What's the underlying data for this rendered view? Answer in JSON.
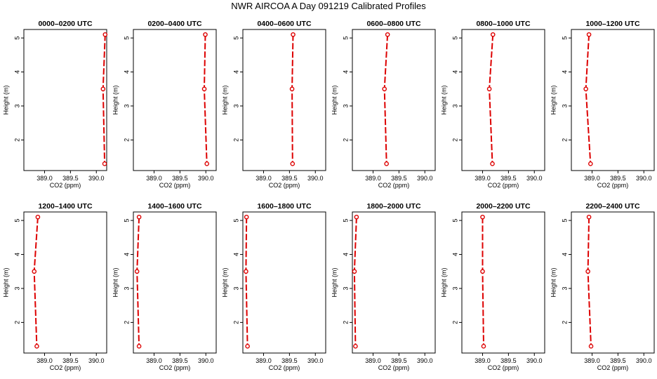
{
  "page": {
    "title": "NWR AIRCOA A  Day 091219  Calibrated Profiles"
  },
  "chart_data": [
    {
      "type": "line",
      "title": "0000–0200 UTC",
      "xlabel": "CO2 (ppm)",
      "ylabel": "Height (m)",
      "xlim": [
        388.6,
        390.2
      ],
      "ylim": [
        1.1,
        5.25
      ],
      "xticks": [
        "389.0",
        "389.5",
        "390.0"
      ],
      "yticks": [
        "2",
        "3",
        "4",
        "5"
      ],
      "x": [
        390.17,
        390.13,
        390.16
      ],
      "y": [
        5.1,
        3.5,
        1.3
      ]
    },
    {
      "type": "line",
      "title": "0200–0400 UTC",
      "xlabel": "CO2 (ppm)",
      "ylabel": "Height (m)",
      "xlim": [
        388.6,
        390.2
      ],
      "ylim": [
        1.1,
        5.25
      ],
      "xticks": [
        "389.0",
        "389.5",
        "390.0"
      ],
      "yticks": [
        "2",
        "3",
        "4",
        "5"
      ],
      "x": [
        389.99,
        389.97,
        390.02
      ],
      "y": [
        5.1,
        3.5,
        1.3
      ]
    },
    {
      "type": "line",
      "title": "0400–0600 UTC",
      "xlabel": "CO2 (ppm)",
      "ylabel": "Height (m)",
      "xlim": [
        388.6,
        390.2
      ],
      "ylim": [
        1.1,
        5.25
      ],
      "xticks": [
        "389.0",
        "389.5",
        "390.0"
      ],
      "yticks": [
        "2",
        "3",
        "4",
        "5"
      ],
      "x": [
        389.57,
        389.55,
        389.56
      ],
      "y": [
        5.1,
        3.5,
        1.3
      ]
    },
    {
      "type": "line",
      "title": "0600–0800 UTC",
      "xlabel": "CO2 (ppm)",
      "ylabel": "Height (m)",
      "xlim": [
        388.6,
        390.2
      ],
      "ylim": [
        1.1,
        5.25
      ],
      "xticks": [
        "389.0",
        "389.5",
        "390.0"
      ],
      "yticks": [
        "2",
        "3",
        "4",
        "5"
      ],
      "x": [
        389.28,
        389.22,
        389.26
      ],
      "y": [
        5.1,
        3.5,
        1.3
      ]
    },
    {
      "type": "line",
      "title": "0800–1000 UTC",
      "xlabel": "CO2 (ppm)",
      "ylabel": "Height (m)",
      "xlim": [
        388.6,
        390.2
      ],
      "ylim": [
        1.1,
        5.25
      ],
      "xticks": [
        "389.0",
        "389.5",
        "390.0"
      ],
      "yticks": [
        "2",
        "3",
        "4",
        "5"
      ],
      "x": [
        389.2,
        389.13,
        389.19
      ],
      "y": [
        5.1,
        3.5,
        1.3
      ]
    },
    {
      "type": "line",
      "title": "1000–1200 UTC",
      "xlabel": "CO2 (ppm)",
      "ylabel": "Height (m)",
      "xlim": [
        388.6,
        390.2
      ],
      "ylim": [
        1.1,
        5.25
      ],
      "xticks": [
        "389.0",
        "389.5",
        "390.0"
      ],
      "yticks": [
        "2",
        "3",
        "4",
        "5"
      ],
      "x": [
        388.94,
        388.88,
        388.97
      ],
      "y": [
        5.1,
        3.5,
        1.3
      ]
    },
    {
      "type": "line",
      "title": "1200–1400 UTC",
      "xlabel": "CO2 (ppm)",
      "ylabel": "Height (m)",
      "xlim": [
        388.6,
        390.2
      ],
      "ylim": [
        1.1,
        5.25
      ],
      "xticks": [
        "389.0",
        "389.5",
        "390.0"
      ],
      "yticks": [
        "2",
        "3",
        "4",
        "5"
      ],
      "x": [
        388.87,
        388.8,
        388.85
      ],
      "y": [
        5.1,
        3.5,
        1.3
      ]
    },
    {
      "type": "line",
      "title": "1400–1600 UTC",
      "xlabel": "CO2 (ppm)",
      "ylabel": "Height (m)",
      "xlim": [
        388.6,
        390.2
      ],
      "ylim": [
        1.1,
        5.25
      ],
      "xticks": [
        "389.0",
        "389.5",
        "390.0"
      ],
      "yticks": [
        "2",
        "3",
        "4",
        "5"
      ],
      "x": [
        388.71,
        388.67,
        388.71
      ],
      "y": [
        5.1,
        3.5,
        1.3
      ]
    },
    {
      "type": "line",
      "title": "1600–1800 UTC",
      "xlabel": "CO2 (ppm)",
      "ylabel": "Height (m)",
      "xlim": [
        388.6,
        390.2
      ],
      "ylim": [
        1.1,
        5.25
      ],
      "xticks": [
        "389.0",
        "389.5",
        "390.0"
      ],
      "yticks": [
        "2",
        "3",
        "4",
        "5"
      ],
      "x": [
        388.67,
        388.66,
        388.69
      ],
      "y": [
        5.1,
        3.5,
        1.3
      ]
    },
    {
      "type": "line",
      "title": "1800–2000 UTC",
      "xlabel": "CO2 (ppm)",
      "ylabel": "Height (m)",
      "xlim": [
        388.6,
        390.2
      ],
      "ylim": [
        1.1,
        5.25
      ],
      "xticks": [
        "389.0",
        "389.5",
        "390.0"
      ],
      "yticks": [
        "2",
        "3",
        "4",
        "5"
      ],
      "x": [
        388.68,
        388.64,
        388.66
      ],
      "y": [
        5.1,
        3.5,
        1.3
      ]
    },
    {
      "type": "line",
      "title": "2000–2200 UTC",
      "xlabel": "CO2 (ppm)",
      "ylabel": "Height (m)",
      "xlim": [
        388.6,
        390.2
      ],
      "ylim": [
        1.1,
        5.25
      ],
      "xticks": [
        "389.0",
        "389.5",
        "390.0"
      ],
      "yticks": [
        "2",
        "3",
        "4",
        "5"
      ],
      "x": [
        389.0,
        389.0,
        389.02
      ],
      "y": [
        5.1,
        3.5,
        1.3
      ]
    },
    {
      "type": "line",
      "title": "2200–2400 UTC",
      "xlabel": "CO2 (ppm)",
      "ylabel": "Height (m)",
      "xlim": [
        388.6,
        390.2
      ],
      "ylim": [
        1.1,
        5.25
      ],
      "xticks": [
        "389.0",
        "389.5",
        "390.0"
      ],
      "yticks": [
        "2",
        "3",
        "4",
        "5"
      ],
      "x": [
        388.94,
        388.92,
        388.98
      ],
      "y": [
        5.1,
        3.5,
        1.3
      ]
    }
  ],
  "style": {
    "series_color": "#dd0000",
    "axis_color": "#000000"
  }
}
